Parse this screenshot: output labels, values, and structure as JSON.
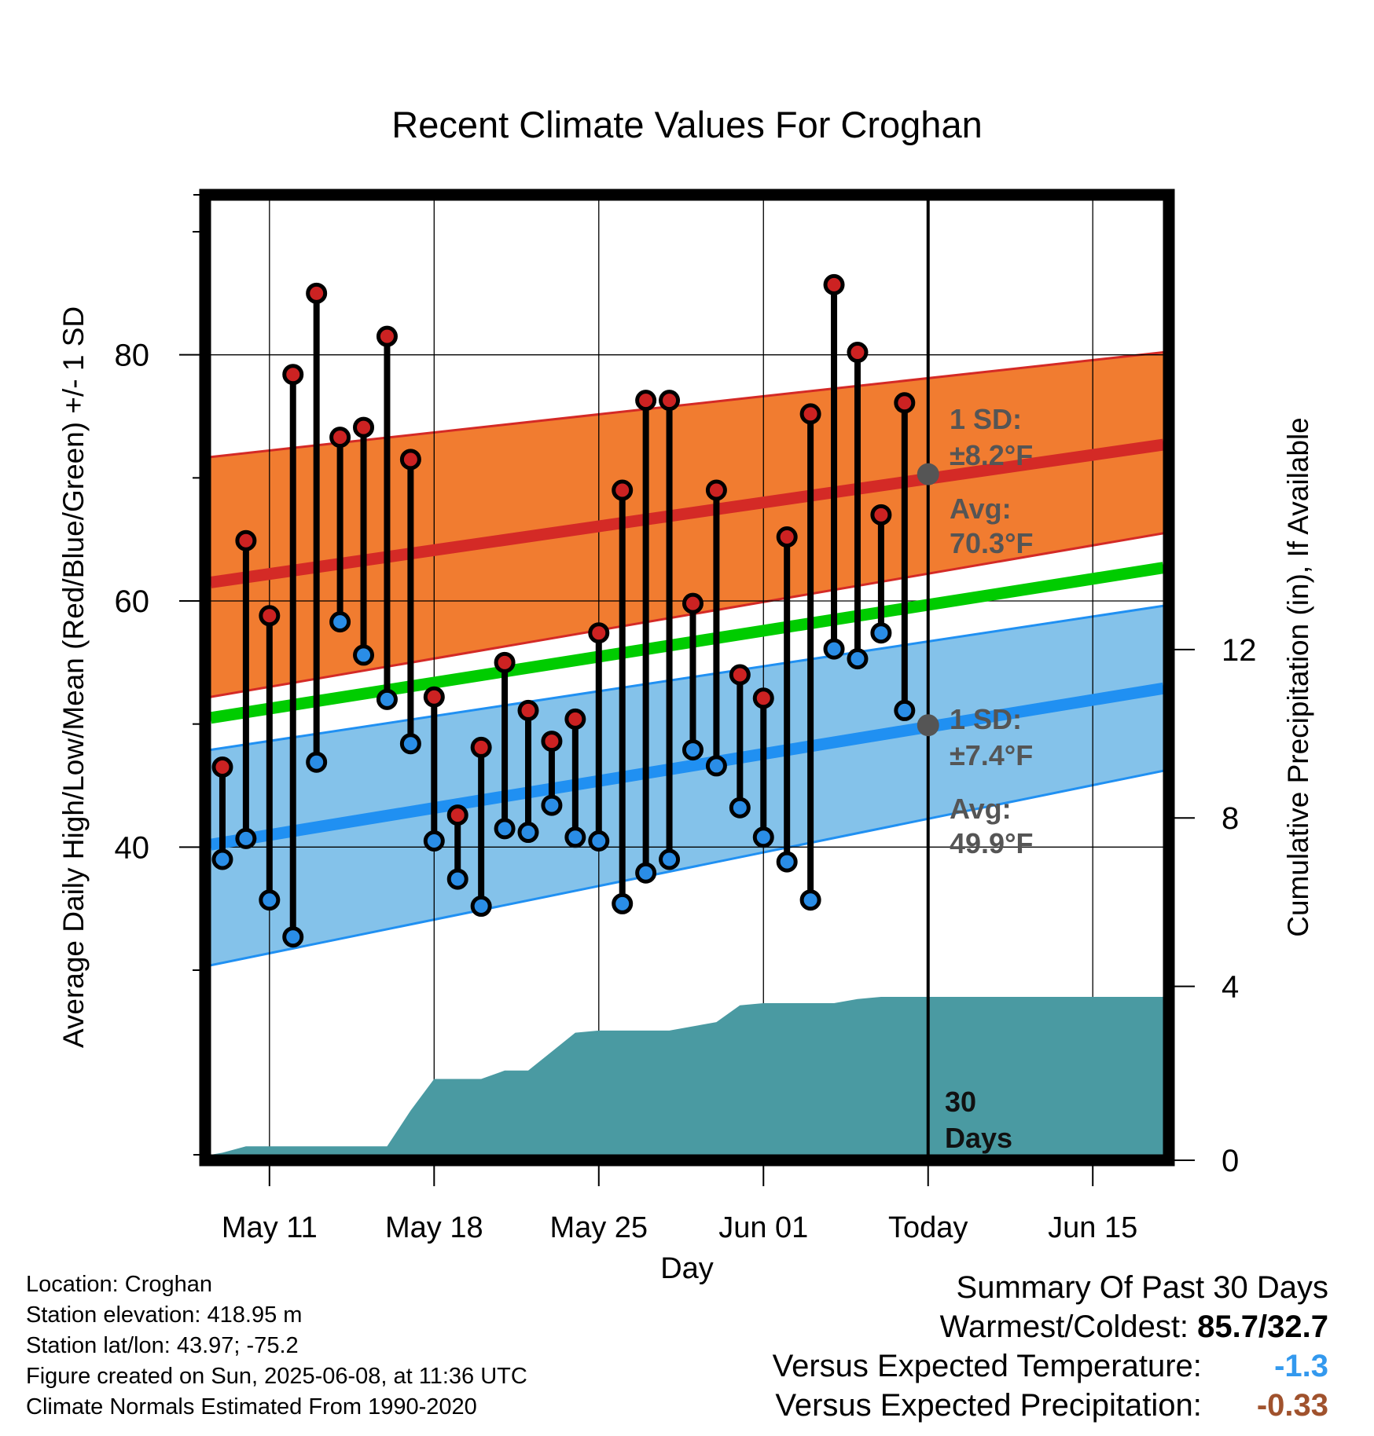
{
  "chart_data": {
    "type": "line",
    "title": "Recent Climate Values For Croghan",
    "xlabel": "Day",
    "ylabel_left": "Average Daily High/Low/Mean (Red/Blue/Green) +/- 1 SD",
    "ylabel_right": "Cumulative Precipitation (in), If Available",
    "x_tick_labels": [
      "May 11",
      "May 18",
      "May 25",
      "Jun 01",
      "Today",
      "Jun 15"
    ],
    "x_tick_days": [
      3,
      10,
      17,
      24,
      31,
      38
    ],
    "x_range_days": [
      0.5,
      41
    ],
    "today_day": 31,
    "left_axis": {
      "range": [
        15,
        93
      ],
      "major_ticks": [
        40,
        60,
        80
      ],
      "minor_ticks": [
        30,
        50,
        70,
        90
      ]
    },
    "right_axis": {
      "range": [
        0,
        22.8
      ],
      "ticks": [
        0,
        4,
        8,
        12
      ]
    },
    "grid": true,
    "normals": {
      "high_mean": {
        "start": 61.5,
        "end": 72.7,
        "color": "#d42a26"
      },
      "high_sd_band": {
        "upper_start": 71.7,
        "upper_end": 80.2,
        "lower_start": 52.2,
        "lower_end": 65.5,
        "color": "#f17c30"
      },
      "mean": {
        "start": 50.5,
        "end": 62.7,
        "color": "#00cc00"
      },
      "low_mean": {
        "start": 40.2,
        "end": 52.9,
        "color": "#2090f2"
      },
      "low_sd_band": {
        "upper_start": 47.9,
        "upper_end": 59.6,
        "lower_start": 30.4,
        "lower_end": 46.2,
        "color": "#84c2ea"
      }
    },
    "daily": [
      {
        "day": 1,
        "high": 46.5,
        "low": 39.0
      },
      {
        "day": 2,
        "high": 64.9,
        "low": 40.7
      },
      {
        "day": 3,
        "high": 58.8,
        "low": 35.7
      },
      {
        "day": 4,
        "high": 78.4,
        "low": 32.7
      },
      {
        "day": 5,
        "high": 85.0,
        "low": 46.9
      },
      {
        "day": 6,
        "high": 73.3,
        "low": 58.3
      },
      {
        "day": 7,
        "high": 74.1,
        "low": 55.6
      },
      {
        "day": 8,
        "high": 81.5,
        "low": 52.0
      },
      {
        "day": 9,
        "high": 71.5,
        "low": 48.4
      },
      {
        "day": 10,
        "high": 52.2,
        "low": 40.5
      },
      {
        "day": 11,
        "high": 42.6,
        "low": 37.4
      },
      {
        "day": 12,
        "high": 48.1,
        "low": 35.2
      },
      {
        "day": 13,
        "high": 55.0,
        "low": 41.5
      },
      {
        "day": 14,
        "high": 51.1,
        "low": 41.2
      },
      {
        "day": 15,
        "high": 48.6,
        "low": 43.4
      },
      {
        "day": 16,
        "high": 50.4,
        "low": 40.8
      },
      {
        "day": 17,
        "high": 57.4,
        "low": 40.5
      },
      {
        "day": 18,
        "high": 69.0,
        "low": 35.4
      },
      {
        "day": 19,
        "high": 76.3,
        "low": 37.9
      },
      {
        "day": 20,
        "high": 76.3,
        "low": 39.0
      },
      {
        "day": 21,
        "high": 59.8,
        "low": 47.9
      },
      {
        "day": 22,
        "high": 69.0,
        "low": 46.6
      },
      {
        "day": 23,
        "high": 54.0,
        "low": 43.2
      },
      {
        "day": 24,
        "high": 52.1,
        "low": 40.8
      },
      {
        "day": 25,
        "high": 65.2,
        "low": 38.8
      },
      {
        "day": 26,
        "high": 75.2,
        "low": 35.7
      },
      {
        "day": 27,
        "high": 85.7,
        "low": 56.1
      },
      {
        "day": 28,
        "high": 80.2,
        "low": 55.3
      },
      {
        "day": 29,
        "high": 67.0,
        "low": 57.4
      },
      {
        "day": 30,
        "high": 76.1,
        "low": 51.1
      }
    ],
    "cumulative_precip": [
      {
        "day": 0.5,
        "in": 0.0
      },
      {
        "day": 1,
        "in": 0.05
      },
      {
        "day": 2,
        "in": 0.2
      },
      {
        "day": 8,
        "in": 0.2
      },
      {
        "day": 9,
        "in": 1.05
      },
      {
        "day": 10,
        "in": 1.8
      },
      {
        "day": 12,
        "in": 1.8
      },
      {
        "day": 13,
        "in": 2.0
      },
      {
        "day": 14,
        "in": 2.0
      },
      {
        "day": 15,
        "in": 2.45
      },
      {
        "day": 16,
        "in": 2.9
      },
      {
        "day": 17,
        "in": 2.95
      },
      {
        "day": 20,
        "in": 2.95
      },
      {
        "day": 21,
        "in": 3.05
      },
      {
        "day": 22,
        "in": 3.15
      },
      {
        "day": 23,
        "in": 3.55
      },
      {
        "day": 24,
        "in": 3.6
      },
      {
        "day": 27,
        "in": 3.6
      },
      {
        "day": 28,
        "in": 3.7
      },
      {
        "day": 29,
        "in": 3.75
      },
      {
        "day": 41,
        "in": 3.75
      }
    ],
    "today_markers": [
      {
        "label_line1": "1 SD:",
        "label_line2": "±8.2°F",
        "value": 70.3,
        "avg_line1": "Avg:",
        "avg_line2": "70.3°F"
      },
      {
        "label_line1": "1 SD:",
        "label_line2": "±7.4°F",
        "value": 49.9,
        "avg_line1": "Avg:",
        "avg_line2": "49.9°F"
      }
    ],
    "days_label": [
      "30",
      "Days"
    ]
  },
  "footer": {
    "location": "Location: Croghan",
    "elevation": "Station elevation: 418.95 m",
    "latlon": "Station lat/lon: 43.97; -75.2",
    "created": "Figure created on Sun, 2025-06-08, at 11:36 UTC",
    "normals": "Climate Normals Estimated From 1990-2020"
  },
  "summary": {
    "heading": "Summary Of Past 30 Days",
    "warm_cold_label": "Warmest/Coldest:",
    "warm_cold_value": "85.7/32.7",
    "temp_label": "Versus Expected Temperature:",
    "temp_value": "-1.3",
    "temp_color": "#3399ee",
    "precip_label": "Versus Expected Precipitation:",
    "precip_value": "-0.33",
    "precip_color": "#a0522d"
  },
  "colors": {
    "high_dot": "#cc2222",
    "low_dot": "#2a8de6",
    "precip_fill": "#4a9aa2",
    "today_marker": "#555555",
    "annotation_text": "#555555"
  }
}
